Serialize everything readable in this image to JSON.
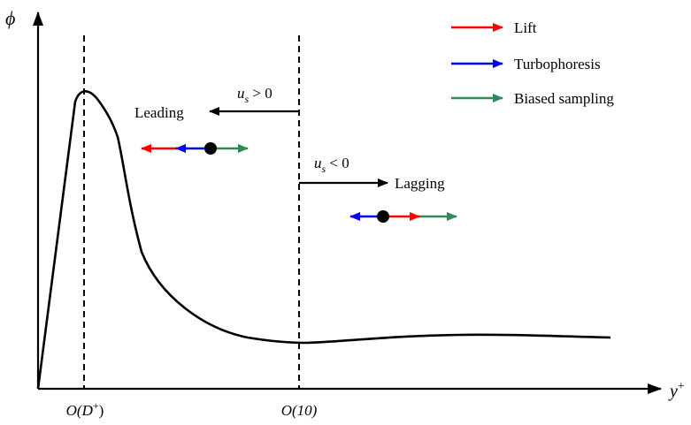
{
  "axes": {
    "y_label": "ϕ",
    "x_label_main": "y",
    "x_label_sup": "+"
  },
  "ticks": {
    "left_pre": "O(D",
    "left_sup": "+",
    "left_post": ")",
    "right": "O(10)"
  },
  "legend": [
    {
      "label": "Lift",
      "color": "#ff0000"
    },
    {
      "label": "Turbophoresis",
      "color": "#0000ff"
    },
    {
      "label": "Biased sampling",
      "color": "#2e8b57"
    }
  ],
  "annotations": {
    "us_pos_var": "u",
    "us_pos_sub": "s",
    "us_pos_rel": " > 0",
    "leading": "Leading",
    "us_neg_var": "u",
    "us_neg_sub": "s",
    "us_neg_rel": " < 0",
    "lagging": "Lagging"
  }
}
